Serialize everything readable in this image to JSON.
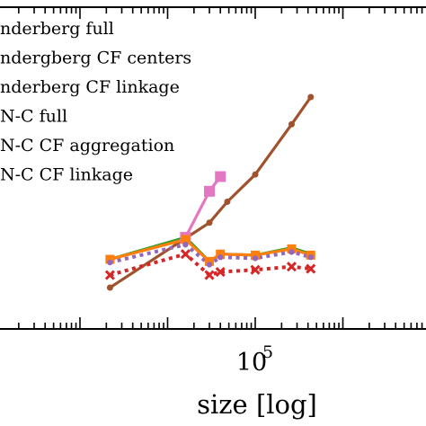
{
  "chart_data": {
    "type": "line",
    "xlabel": "size [log]",
    "x_scale": "log",
    "x_tick_labels": [
      {
        "base": "10",
        "exp": "5",
        "value": 100000
      }
    ],
    "y_tick_labels": [],
    "legend_position": "top-left",
    "series": [
      {
        "name": "nderberg full",
        "color": "#a0522d",
        "marker": "circle",
        "linestyle": "solid",
        "points": [
          [
            2200,
            0.0
          ],
          [
            30000,
            0.62
          ],
          [
            48000,
            0.82
          ],
          [
            100000,
            1.08
          ],
          [
            260000,
            1.56
          ],
          [
            430000,
            1.82
          ]
        ]
      },
      {
        "name": "ndergberg CF centers",
        "color": "#e377c2",
        "marker": "square",
        "linestyle": "solid",
        "points": [
          [
            16000,
            0.48
          ],
          [
            30000,
            0.92
          ],
          [
            40000,
            1.06
          ]
        ]
      },
      {
        "name": "nderberg CF linkage",
        "color": "#d62728",
        "marker": "x",
        "linestyle": "dotted",
        "points": [
          [
            2200,
            0.12
          ],
          [
            16000,
            0.32
          ],
          [
            30000,
            0.12
          ],
          [
            40000,
            0.15
          ],
          [
            100000,
            0.17
          ],
          [
            260000,
            0.2
          ],
          [
            430000,
            0.18
          ]
        ]
      },
      {
        "name": "N-C full",
        "color": "#2ca02c",
        "marker": "none",
        "linestyle": "solid",
        "points": [
          [
            2200,
            0.27
          ],
          [
            16000,
            0.48
          ],
          [
            30000,
            0.25
          ],
          [
            40000,
            0.32
          ],
          [
            100000,
            0.31
          ],
          [
            260000,
            0.38
          ],
          [
            430000,
            0.32
          ]
        ]
      },
      {
        "name": "N-C CF aggregation",
        "color": "#ff7f0e",
        "marker": "square",
        "linestyle": "solid",
        "points": [
          [
            2200,
            0.27
          ],
          [
            16000,
            0.46
          ],
          [
            30000,
            0.25
          ],
          [
            40000,
            0.32
          ],
          [
            100000,
            0.31
          ],
          [
            260000,
            0.37
          ],
          [
            430000,
            0.31
          ]
        ]
      },
      {
        "name": "N-C CF linkage",
        "color": "#9467bd",
        "marker": "circle",
        "linestyle": "dotted",
        "points": [
          [
            2200,
            0.24
          ],
          [
            16000,
            0.41
          ],
          [
            30000,
            0.22
          ],
          [
            40000,
            0.29
          ],
          [
            100000,
            0.28
          ],
          [
            260000,
            0.34
          ],
          [
            430000,
            0.29
          ]
        ]
      }
    ]
  }
}
